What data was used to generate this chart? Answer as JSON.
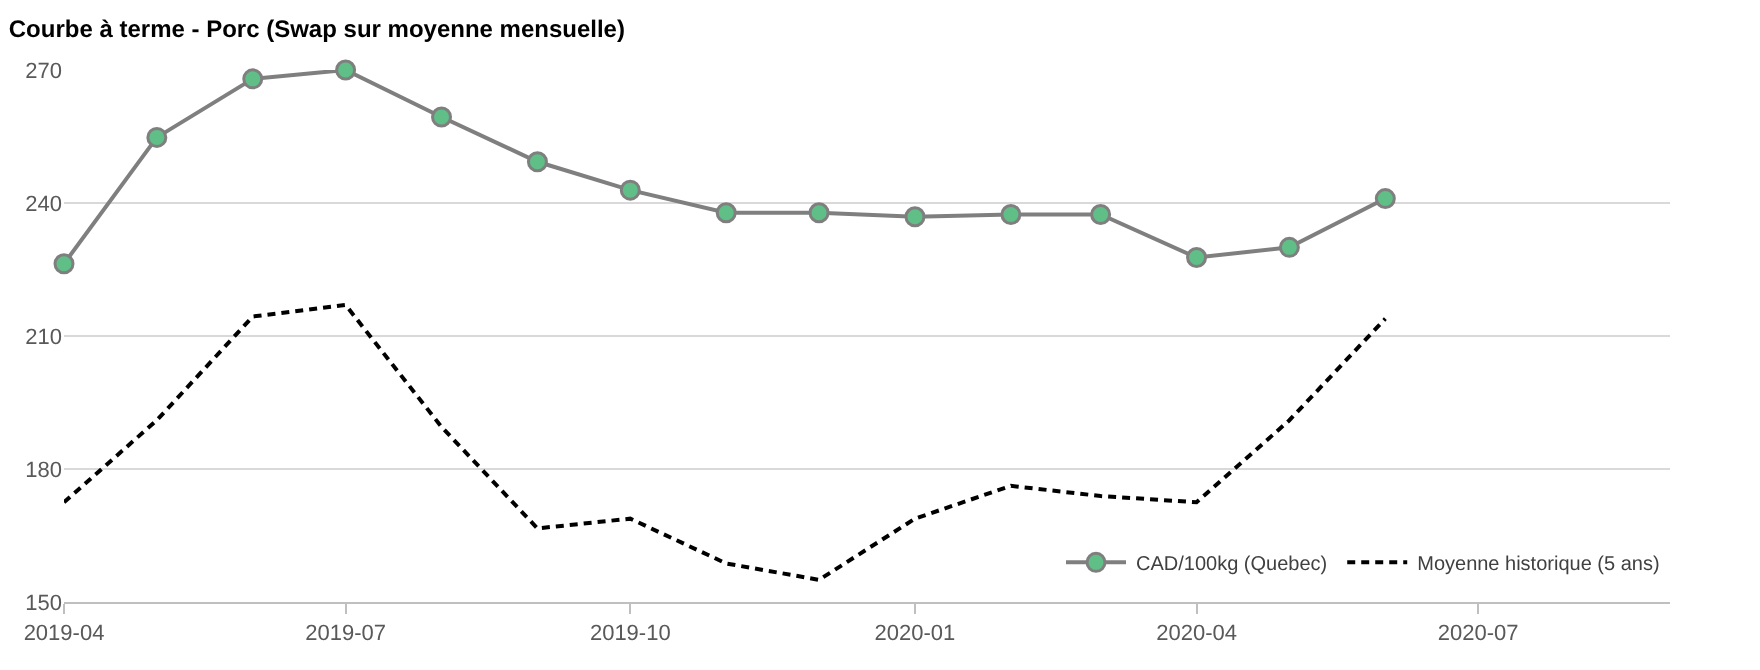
{
  "chart_data": {
    "type": "line",
    "title": "Courbe à terme - Porc (Swap sur moyenne mensuelle)",
    "x": [
      "2019-04",
      "2019-05",
      "2019-06",
      "2019-07",
      "2019-08",
      "2019-09",
      "2019-10",
      "2019-11",
      "2019-12",
      "2020-01",
      "2020-02",
      "2020-03",
      "2020-04",
      "2020-05",
      "2020-06"
    ],
    "series": [
      {
        "name": "CAD/100kg (Quebec)",
        "color": "#5fbf87",
        "marker": "circle",
        "line_style": "solid",
        "values": [
          226.3,
          254.8,
          268,
          270,
          259.4,
          249.3,
          242.9,
          237.8,
          237.8,
          236.9,
          237.4,
          237.4,
          227.7,
          230,
          241
        ]
      },
      {
        "name": "Moyenne historique (5 ans)",
        "color": "#000000",
        "marker": "none",
        "line_style": "dashed",
        "values": [
          172.5,
          191,
          214.4,
          217,
          189.5,
          166.6,
          168.8,
          158.7,
          155,
          168.8,
          176.2,
          173.9,
          172.5,
          191,
          213.9
        ]
      }
    ],
    "xlim": [
      "2019-04",
      "2020-09"
    ],
    "xticks": [
      "2019-04",
      "2019-07",
      "2019-10",
      "2020-01",
      "2020-04",
      "2020-07"
    ],
    "ylim": [
      150,
      270
    ],
    "yticks": [
      150,
      180,
      210,
      240,
      270
    ],
    "grid": "y",
    "legend": "bottom right"
  }
}
